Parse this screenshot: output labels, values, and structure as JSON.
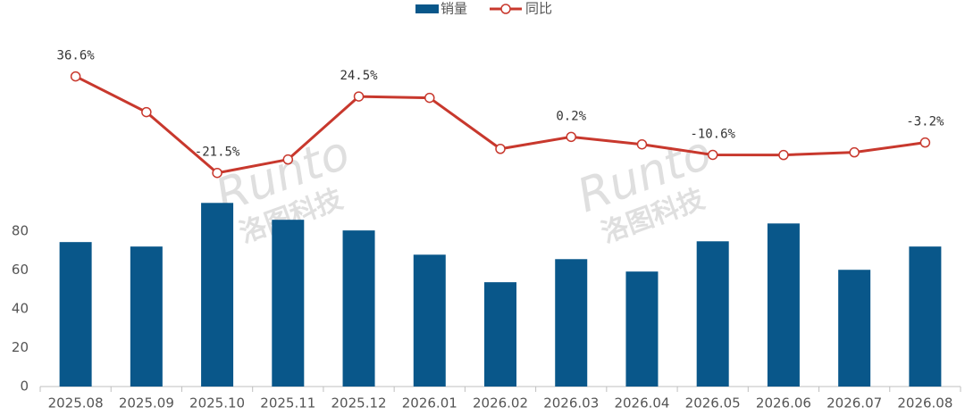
{
  "chart_data": {
    "type": "bar-line",
    "watermark": [
      "Runto",
      "洛图科技"
    ],
    "categories": [
      "2025.08",
      "2025.09",
      "2025.10",
      "2025.11",
      "2025.12",
      "2026.01",
      "2026.02",
      "2026.03",
      "2026.04",
      "2026.05",
      "2026.06",
      "2026.07",
      "2026.08"
    ],
    "series": [
      {
        "name": "销量",
        "type": "bar",
        "color": "#09578a",
        "values": [
          74.5,
          72.2,
          94.7,
          86.0,
          80.5,
          68.0,
          53.8,
          65.7,
          59.3,
          74.9,
          84.1,
          60.2,
          72.2
        ]
      },
      {
        "name": "同比",
        "type": "line",
        "axis": "y2",
        "color": "#c8382d",
        "values": [
          36.6,
          15.1,
          -21.5,
          -13.4,
          24.5,
          23.7,
          -7.0,
          0.2,
          -4.3,
          -10.6,
          -10.7,
          -9.1,
          -3.2
        ],
        "value_labels": [
          "36.6%",
          null,
          "-21.5%",
          null,
          "24.5%",
          null,
          null,
          "0.2%",
          null,
          "-10.6%",
          null,
          null,
          "-3.2%"
        ]
      }
    ],
    "ylim": [
      0,
      180
    ],
    "yticks": [
      0,
      20,
      40,
      60,
      80
    ],
    "y2lim": [
      -150,
      60
    ],
    "legend": "top"
  }
}
